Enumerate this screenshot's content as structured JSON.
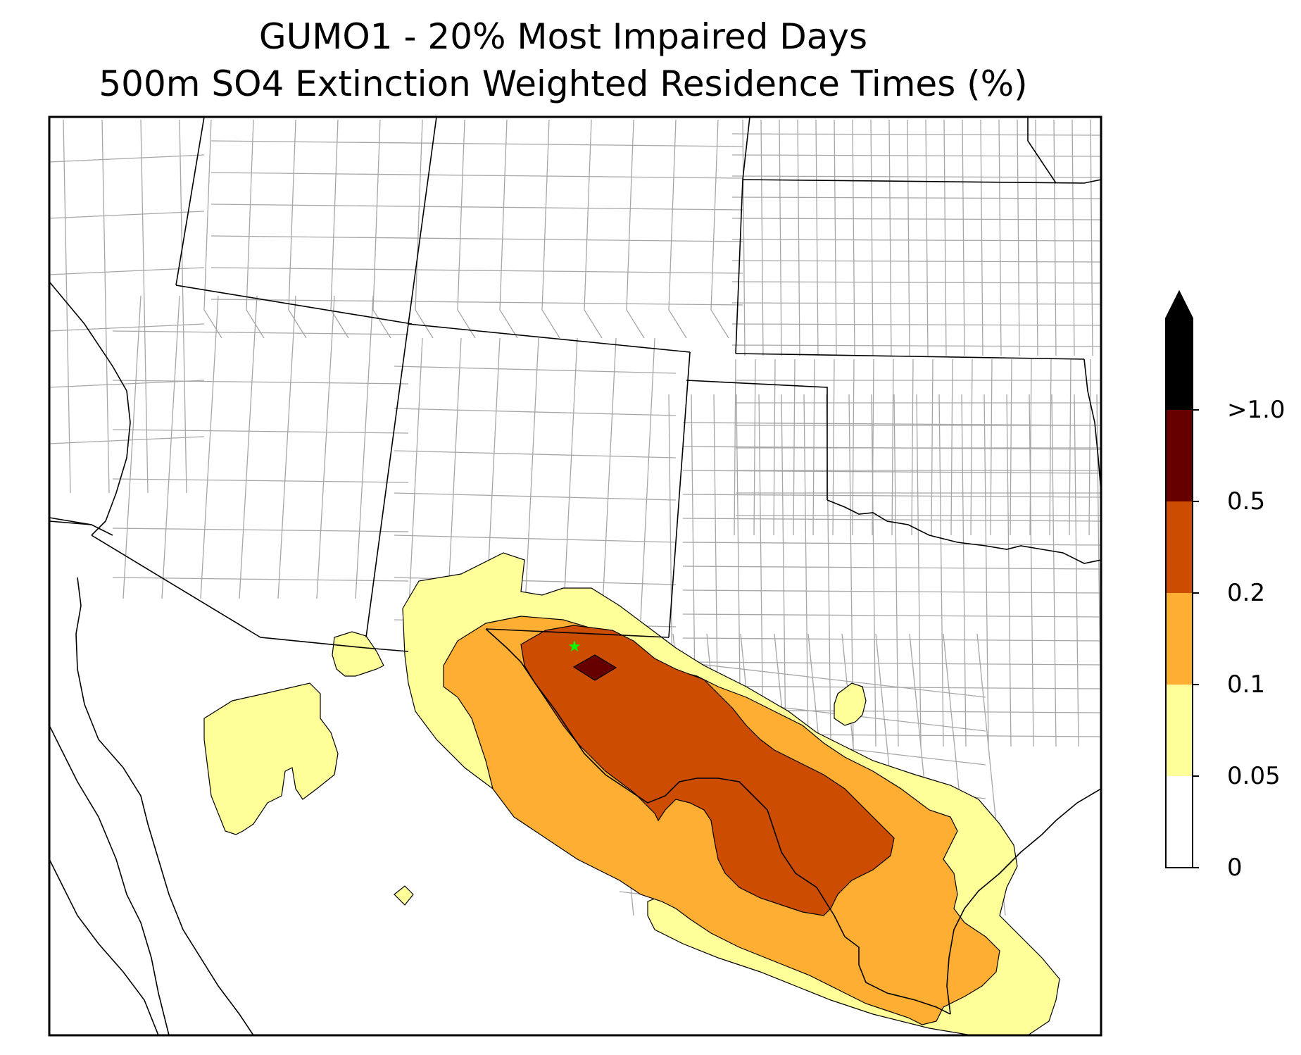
{
  "title": "GUMO1 - 20% Most Impaired Days",
  "subtitle": "500m SO4 Extinction Weighted Residence Times (%)",
  "site_marker": {
    "label": "",
    "icon": "star-icon",
    "color": "#00ff00"
  },
  "colorbar": {
    "levels": [
      "0",
      "0.05",
      "0.1",
      "0.2",
      "0.5",
      ">1.0"
    ],
    "colors": [
      "#ffffff",
      "#ffff99",
      "#fdae33",
      "#cc4c02",
      "#660000",
      "#000000"
    ],
    "extend": "max"
  },
  "contour_colors": {
    "level_0_05": "#ffff99",
    "level_0_1": "#fdae33",
    "level_0_2": "#cc4c02",
    "level_0_5": "#660000"
  }
}
